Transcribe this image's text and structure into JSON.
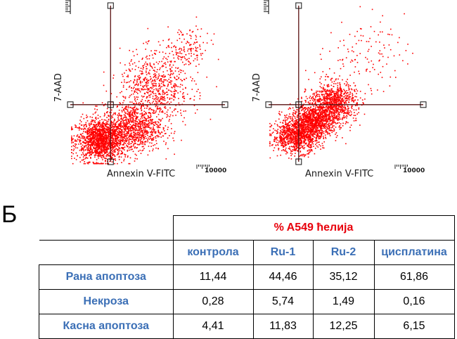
{
  "colors": {
    "dots": "#ff0000",
    "quadrant_lines": "#5a1010",
    "table_title": "#e8000b",
    "table_headers": "#3b6fb6"
  },
  "chart_data": [
    {
      "type": "scatter",
      "panel": "left",
      "xlabel": "Annexin V-FITC",
      "ylabel": "7-AAD",
      "x_tick_label": "10000",
      "xscale": "log",
      "yscale": "log",
      "xlim": [
        1,
        10000
      ],
      "ylim": [
        1,
        10000
      ],
      "quadrant_gate": {
        "x": 11,
        "y": 30
      },
      "clusters": [
        {
          "center": [
            6,
            4
          ],
          "spread": [
            0.32,
            0.26
          ],
          "count": 1500
        },
        {
          "center": [
            40,
            8
          ],
          "spread": [
            0.38,
            0.3
          ],
          "count": 900
        },
        {
          "center": [
            150,
            80
          ],
          "spread": [
            0.45,
            0.45
          ],
          "count": 700
        },
        {
          "center": [
            1000,
            700
          ],
          "spread": [
            0.3,
            0.3
          ],
          "count": 150
        }
      ]
    },
    {
      "type": "scatter",
      "panel": "right",
      "xlabel": "Annexin V-FITC",
      "ylabel": "7-AAD",
      "x_tick_label": "10000",
      "xscale": "log",
      "yscale": "log",
      "xlim": [
        1,
        10000
      ],
      "ylim": [
        1,
        10000
      ],
      "quadrant_gate": {
        "x": 6,
        "y": 30
      },
      "clusters": [
        {
          "center": [
            5,
            5
          ],
          "spread": [
            0.3,
            0.2
          ],
          "count": 1000
        },
        {
          "center": [
            15,
            12
          ],
          "spread": [
            0.3,
            0.2
          ],
          "count": 1000
        },
        {
          "center": [
            45,
            35
          ],
          "spread": [
            0.3,
            0.25
          ],
          "count": 900
        },
        {
          "center": [
            300,
            600
          ],
          "spread": [
            0.5,
            0.45
          ],
          "count": 120
        }
      ]
    }
  ],
  "section_label": "Б",
  "table": {
    "title": "% A549 ћелија",
    "columns": [
      "контрола",
      "Ru-1",
      "Ru-2",
      "цисплатина"
    ],
    "rows": [
      {
        "label": "Рана апоптоза",
        "values": [
          "11,44",
          "44,46",
          "35,12",
          "61,86"
        ]
      },
      {
        "label": "Некроза",
        "values": [
          "0,28",
          "5,74",
          "1,49",
          "0,16"
        ]
      },
      {
        "label": "Касна апоптоза",
        "values": [
          "4,41",
          "11,83",
          "12,25",
          "6,15"
        ]
      }
    ]
  }
}
